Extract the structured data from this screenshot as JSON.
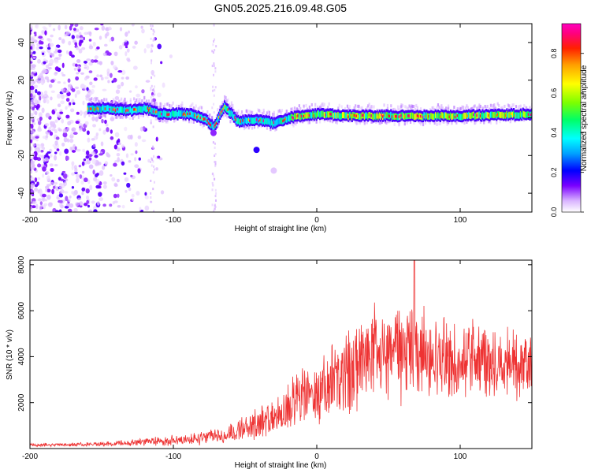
{
  "title": "GN05.2025.216.09.48.G05",
  "chart_data": [
    {
      "type": "heatmap",
      "xlabel": "Height of straight line (km)",
      "ylabel": "Frequency (Hz)",
      "xlim": [
        -200,
        150
      ],
      "ylim": [
        -50,
        50
      ],
      "xticks": [
        -200,
        -100,
        0,
        100
      ],
      "yticks": [
        -40,
        -20,
        0,
        20,
        40
      ],
      "colorbar": {
        "label": "Normalized spectral amplitude",
        "range": [
          0,
          0.95
        ],
        "ticks": [
          "0.0",
          "0.2",
          "0.4",
          "0.6",
          "0.8"
        ],
        "colors": [
          "#ffffff",
          "#d9b3ff",
          "#7a00ff",
          "#0000ff",
          "#00a0ff",
          "#00ffff",
          "#00ff66",
          "#7cff00",
          "#ffff00",
          "#ffa000",
          "#ff2000",
          "#ff0080",
          "#ff00c0"
        ]
      },
      "ridge": {
        "x": [
          -160,
          -150,
          -140,
          -130,
          -120,
          -115,
          -110,
          -100,
          -90,
          -80,
          -72,
          -65,
          -55,
          -45,
          -35,
          -30,
          -20,
          0,
          20,
          50,
          100,
          150
        ],
        "y": [
          5,
          5,
          4,
          4,
          5,
          4,
          2,
          2,
          2,
          0,
          -5,
          6,
          -2,
          -1,
          -2,
          -3,
          0,
          2,
          1,
          1,
          1,
          2
        ]
      }
    },
    {
      "type": "line",
      "xlabel": "Height of straight line (km)",
      "ylabel": "SNR (10 * v/v)",
      "xlim": [
        -200,
        150
      ],
      "ylim": [
        0,
        8200
      ],
      "xticks": [
        -200,
        -100,
        0,
        100
      ],
      "yticks": [
        2000,
        4000,
        6000,
        8000
      ],
      "series": [
        {
          "color": "#ee3333",
          "envelope": {
            "x": [
              -200,
              -160,
              -140,
              -120,
              -100,
              -80,
              -70,
              -60,
              -50,
              -40,
              -30,
              -20,
              -10,
              0,
              10,
              20,
              30,
              40,
              50,
              60,
              70,
              80,
              90,
              100,
              110,
              120,
              130,
              140,
              150
            ],
            "mean": [
              150,
              180,
              220,
              280,
              350,
              450,
              550,
              650,
              900,
              1100,
              1300,
              1700,
              2200,
              2500,
              2800,
              3200,
              3800,
              4200,
              4000,
              4000,
              4300,
              4100,
              3900,
              3800,
              4000,
              3800,
              3700,
              3600,
              3700
            ],
            "spread": [
              60,
              80,
              100,
              150,
              200,
              250,
              300,
              350,
              500,
              600,
              700,
              900,
              1200,
              1400,
              1500,
              1700,
              1800,
              1900,
              1900,
              1800,
              1900,
              1700,
              1600,
              1500,
              1500,
              1400,
              1400,
              1300,
              1300
            ]
          },
          "peak": {
            "x": 68,
            "y": 8200
          }
        }
      ]
    }
  ]
}
